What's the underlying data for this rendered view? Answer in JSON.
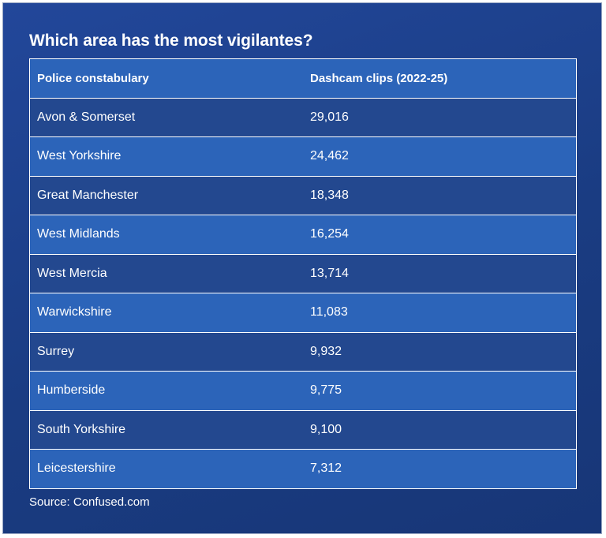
{
  "title": "Which area has the most vigilantes?",
  "source": "Source: Confused.com",
  "colors": {
    "background": "#1b3f86",
    "row_dark": "#23488f",
    "row_light": "#2c64b9",
    "text": "#ffffff"
  },
  "chart_data": {
    "type": "table",
    "title": "Which area has the most vigilantes?",
    "columns": [
      "Police constabulary",
      "Dashcam clips (2022-25)"
    ],
    "rows": [
      [
        "Avon & Somerset",
        "29,016"
      ],
      [
        "West Yorkshire",
        "24,462"
      ],
      [
        "Great Manchester",
        "18,348"
      ],
      [
        "West Midlands",
        "16,254"
      ],
      [
        "West Mercia",
        "13,714"
      ],
      [
        "Warwickshire",
        "11,083"
      ],
      [
        "Surrey",
        "9,932"
      ],
      [
        "Humberside",
        "9,775"
      ],
      [
        "South Yorkshire",
        "9,100"
      ],
      [
        "Leicestershire",
        "7,312"
      ]
    ]
  }
}
